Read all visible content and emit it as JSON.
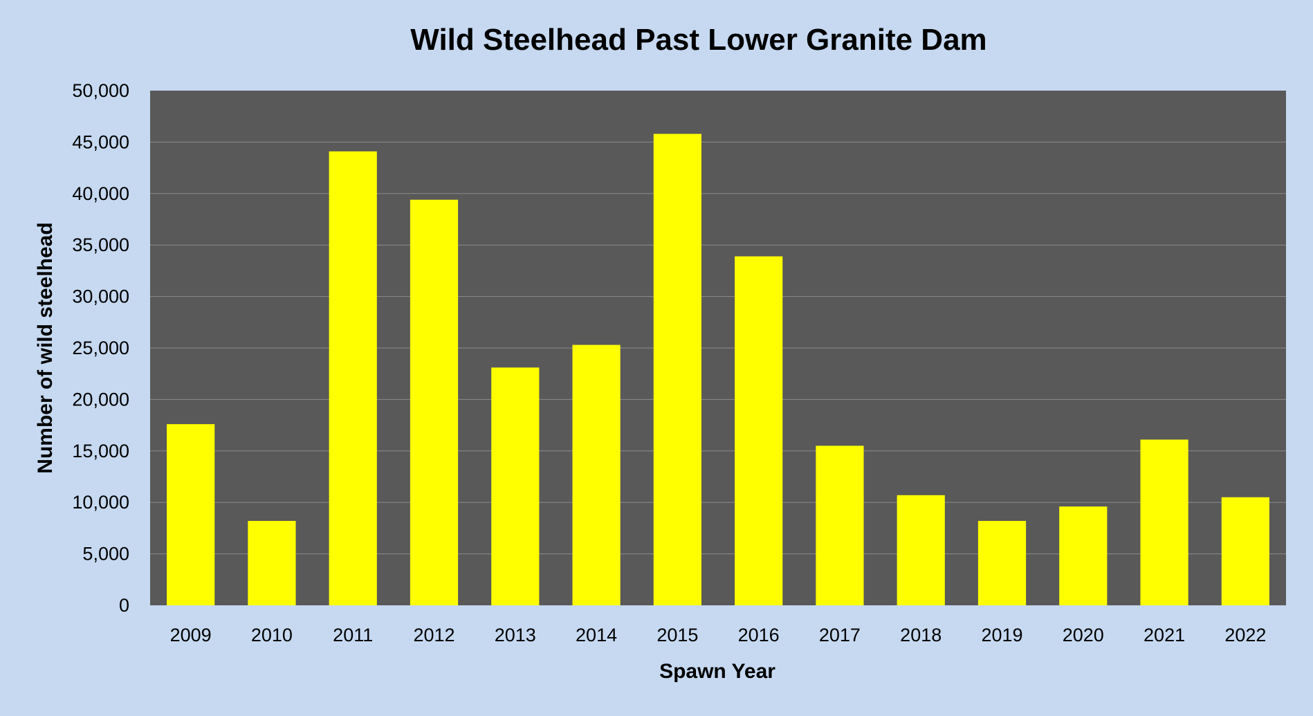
{
  "chart_data": {
    "type": "bar",
    "title": "Wild Steelhead Past Lower Granite Dam",
    "xlabel": "Spawn Year",
    "ylabel": "Number of wild steelhead",
    "categories": [
      "2009",
      "2010",
      "2011",
      "2012",
      "2013",
      "2014",
      "2015",
      "2016",
      "2017",
      "2018",
      "2019",
      "2020",
      "2021",
      "2022"
    ],
    "values": [
      17600,
      8200,
      44100,
      39400,
      23100,
      25300,
      45800,
      33900,
      15500,
      10700,
      8200,
      9600,
      16100,
      10500
    ],
    "ylim": [
      0,
      50000
    ],
    "yticks": [
      "0",
      "5,000",
      "10,000",
      "15,000",
      "20,000",
      "25,000",
      "30,000",
      "35,000",
      "40,000",
      "45,000",
      "50,000"
    ],
    "ytick_values": [
      0,
      5000,
      10000,
      15000,
      20000,
      25000,
      30000,
      35000,
      40000,
      45000,
      50000
    ],
    "grid": true,
    "legend": "none",
    "colors": {
      "background": "#c6d9f1",
      "plot_area": "#595959",
      "bar": "#ffff00",
      "gridline": "#8c8c8c",
      "text": "#000000"
    }
  }
}
